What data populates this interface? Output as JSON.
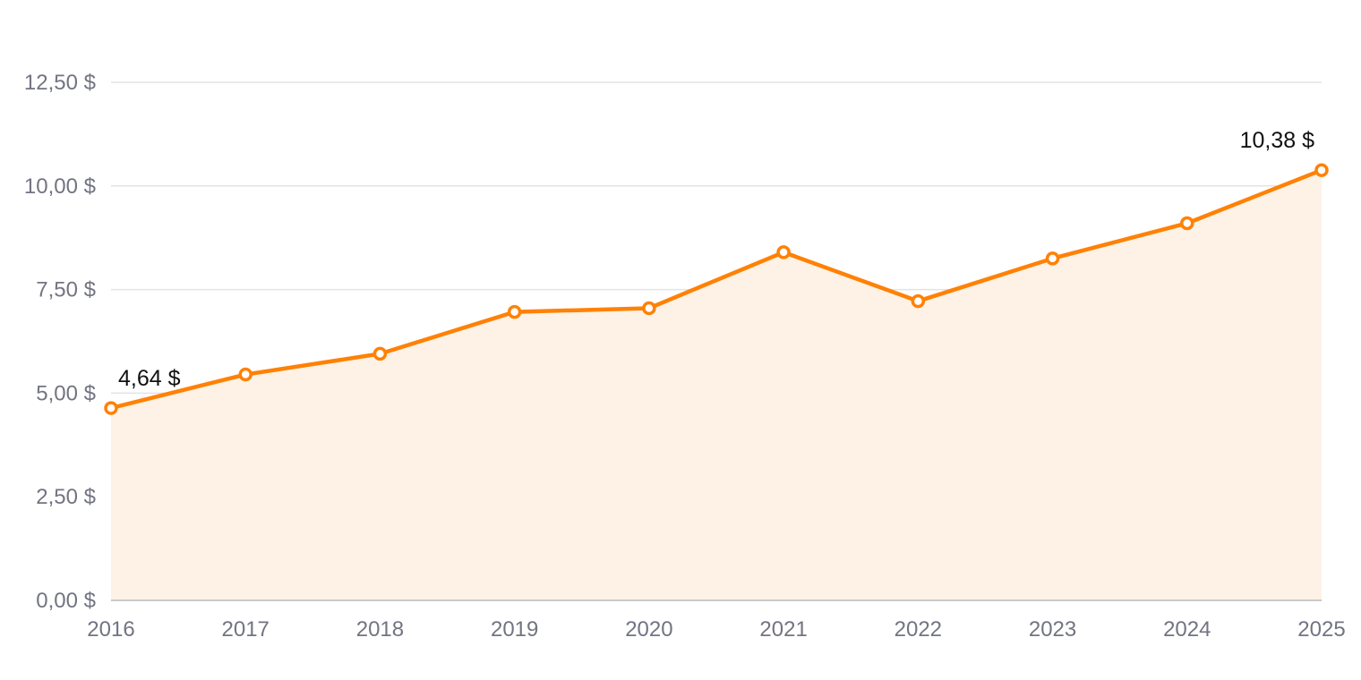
{
  "chart_data": {
    "type": "area",
    "categories": [
      "2016",
      "2017",
      "2018",
      "2019",
      "2020",
      "2021",
      "2022",
      "2023",
      "2024",
      "2025"
    ],
    "series": [
      {
        "values": [
          4.64,
          5.45,
          5.95,
          6.96,
          7.05,
          8.4,
          7.22,
          8.25,
          9.1,
          10.38
        ]
      }
    ],
    "ylim": [
      0,
      12.5
    ],
    "yticks": [
      0,
      2.5,
      5,
      7.5,
      10,
      12.5
    ],
    "ytick_labels": [
      "0,00 $",
      "2,50 $",
      "5,00 $",
      "7,50 $",
      "10,00 $",
      "12,50 $"
    ],
    "annotations": [
      {
        "index": 0,
        "text": "4,64 $"
      },
      {
        "index": 9,
        "text": "10,38 $"
      }
    ],
    "grid": true,
    "legend": "none",
    "colors": {
      "line": "#ff8105",
      "fill": "#fef2e6",
      "marker_fill": "#ffffff"
    }
  }
}
